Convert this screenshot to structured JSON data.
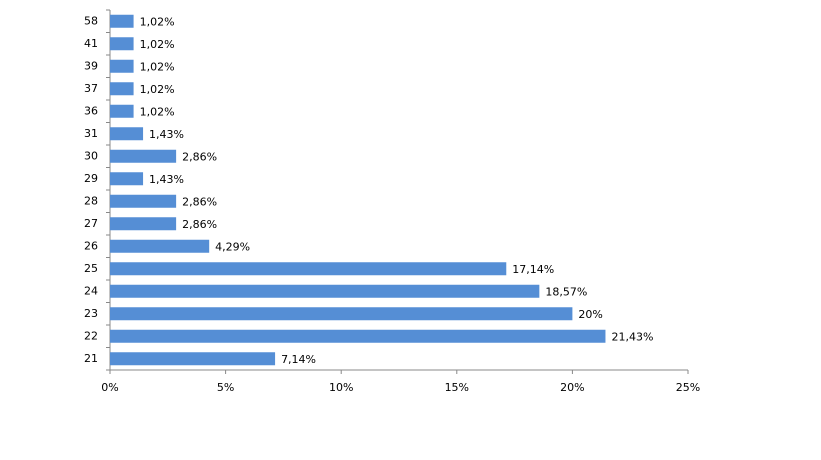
{
  "chart_data": {
    "type": "barh",
    "categories": [
      "58",
      "41",
      "39",
      "37",
      "36",
      "31",
      "30",
      "29",
      "28",
      "27",
      "26",
      "25",
      "24",
      "23",
      "22",
      "21"
    ],
    "values": [
      1.02,
      1.02,
      1.02,
      1.02,
      1.02,
      1.43,
      2.86,
      1.43,
      2.86,
      2.86,
      4.29,
      17.14,
      18.57,
      20,
      21.43,
      7.14
    ],
    "value_labels": [
      "1,02%",
      "1,02%",
      "1,02%",
      "1,02%",
      "1,02%",
      "1,43%",
      "2,86%",
      "1,43%",
      "2,86%",
      "2,86%",
      "4,29%",
      "17,14%",
      "18,57%",
      "20%",
      "21,43%",
      "7,14%"
    ],
    "color": "#558ed5",
    "xlim": [
      0,
      25
    ],
    "xticks": [
      {
        "value": 0,
        "label": "0%"
      },
      {
        "value": 5,
        "label": "5%"
      },
      {
        "value": 10,
        "label": "10%"
      },
      {
        "value": 15,
        "label": "15%"
      },
      {
        "value": 20,
        "label": "20%"
      },
      {
        "value": 25,
        "label": "25%"
      }
    ]
  }
}
